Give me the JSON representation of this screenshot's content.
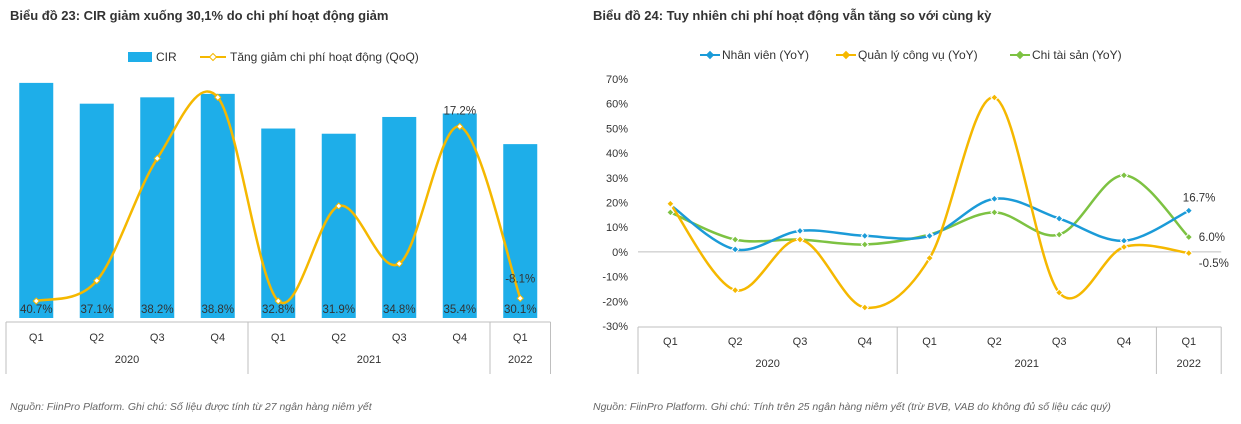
{
  "left": {
    "title": "Biểu đồ 23: CIR giảm xuống 30,1% do chi phí hoạt động giảm",
    "source": "Nguồn: FiinPro Platform. Ghi chú: Số liệu được tính từ 27 ngân hàng niêm yết",
    "colors": {
      "bar": "#1eaee9",
      "line": "#f5b800"
    }
  },
  "right": {
    "title": "Biểu đồ 24: Tuy nhiên chi phí hoạt động vẫn tăng so với cùng kỳ",
    "source": "Nguồn: FiinPro Platform. Ghi chú: Tính trên 25 ngân hàng niêm yết (trừ BVB, VAB do không đủ số liệu các quý)",
    "colors": {
      "nhan_vien": "#1b9bd8",
      "quan_ly": "#f5b800",
      "tai_san": "#7dc242"
    }
  },
  "chart_data": [
    {
      "type": "bar",
      "title": "Biểu đồ 23: CIR giảm xuống 30,1% do chi phí hoạt động giảm",
      "categories": [
        "Q1",
        "Q2",
        "Q3",
        "Q4",
        "Q1",
        "Q2",
        "Q3",
        "Q4",
        "Q1"
      ],
      "groups": [
        {
          "label": "2020",
          "count": 4
        },
        {
          "label": "2021",
          "count": 4
        },
        {
          "label": "2022",
          "count": 1
        }
      ],
      "legend": [
        "CIR",
        "Tăng giảm chi phí hoạt động (QoQ)"
      ],
      "legend_position": "top",
      "series": [
        {
          "name": "CIR",
          "kind": "bar",
          "axis": "left",
          "values": [
            40.7,
            37.1,
            38.2,
            38.8,
            32.8,
            31.9,
            34.8,
            35.4,
            30.1
          ],
          "labels": [
            "40.7%",
            "37.1%",
            "38.2%",
            "38.8%",
            "32.8%",
            "31.9%",
            "34.8%",
            "35.4%",
            "30.1%"
          ]
        },
        {
          "name": "Tăng giảm chi phí hoạt động (QoQ)",
          "kind": "line",
          "axis": "right",
          "smooth": true,
          "values": [
            -8.5,
            -5.5,
            12.5,
            21.5,
            -8.5,
            5.5,
            -3.0,
            17.2,
            -8.1
          ],
          "labels": [
            "",
            "",
            "",
            "",
            "",
            "",
            "",
            "17.2%",
            "-8.1%"
          ]
        }
      ],
      "ylim_left": [
        0,
        42
      ],
      "ylim_right": [
        -11,
        27
      ],
      "axes_visible": false,
      "grid": false
    },
    {
      "type": "line",
      "title": "Biểu đồ 24: Tuy nhiên chi phí hoạt động vẫn tăng so với cùng kỳ",
      "categories": [
        "Q1",
        "Q2",
        "Q3",
        "Q4",
        "Q1",
        "Q2",
        "Q3",
        "Q4",
        "Q1"
      ],
      "groups": [
        {
          "label": "2020",
          "count": 4
        },
        {
          "label": "2021",
          "count": 4
        },
        {
          "label": "2022",
          "count": 1
        }
      ],
      "legend": [
        "Nhân viên (YoY)",
        "Quản lý công vụ (YoY)",
        "Chi tài sản (YoY)"
      ],
      "legend_position": "top",
      "yticks": [
        "70%",
        "60%",
        "50%",
        "40%",
        "30%",
        "20%",
        "10%",
        "0%",
        "-10%",
        "-20%",
        "-30%"
      ],
      "ylim": [
        -30,
        70
      ],
      "grid": false,
      "series": [
        {
          "name": "Nhân viên (YoY)",
          "smooth": true,
          "values": [
            19.0,
            1.0,
            8.5,
            6.5,
            6.5,
            21.5,
            13.5,
            4.5,
            16.7
          ],
          "last_label": "16.7%"
        },
        {
          "name": "Quản lý công vụ (YoY)",
          "smooth": true,
          "values": [
            19.5,
            -15.5,
            5.0,
            -22.5,
            -2.5,
            62.5,
            -16.5,
            2.0,
            -0.5
          ],
          "last_label": "-0.5%"
        },
        {
          "name": "Chi tài sản (YoY)",
          "smooth": true,
          "values": [
            16.0,
            5.0,
            5.0,
            3.0,
            7.0,
            16.0,
            7.0,
            31.0,
            6.0
          ],
          "last_label": "6.0%"
        }
      ]
    }
  ]
}
